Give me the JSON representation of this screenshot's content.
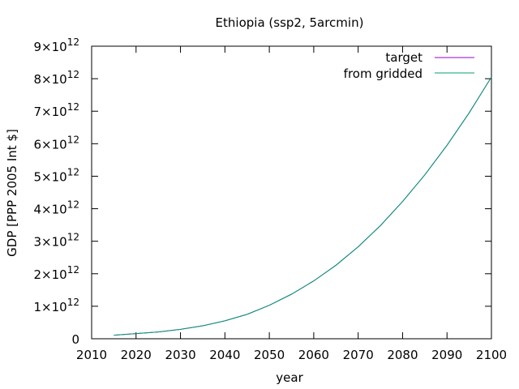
{
  "chart_data": {
    "type": "line",
    "title": "Ethiopia (ssp2, 5arcmin)",
    "xlabel": "year",
    "ylabel": "GDP [PPP 2005 Int $]",
    "xlim": [
      2010,
      2100
    ],
    "ylim": [
      0,
      9000000000000.0
    ],
    "xticks": [
      2010,
      2020,
      2030,
      2040,
      2050,
      2060,
      2070,
      2080,
      2090,
      2100
    ],
    "yticks": [
      {
        "value": 0,
        "mantissa": "0",
        "exp": ""
      },
      {
        "value": 1000000000000.0,
        "mantissa": "1×10",
        "exp": "12"
      },
      {
        "value": 2000000000000.0,
        "mantissa": "2×10",
        "exp": "12"
      },
      {
        "value": 3000000000000.0,
        "mantissa": "3×10",
        "exp": "12"
      },
      {
        "value": 4000000000000.0,
        "mantissa": "4×10",
        "exp": "12"
      },
      {
        "value": 5000000000000.0,
        "mantissa": "5×10",
        "exp": "12"
      },
      {
        "value": 6000000000000.0,
        "mantissa": "6×10",
        "exp": "12"
      },
      {
        "value": 7000000000000.0,
        "mantissa": "7×10",
        "exp": "12"
      },
      {
        "value": 8000000000000.0,
        "mantissa": "8×10",
        "exp": "12"
      },
      {
        "value": 9000000000000.0,
        "mantissa": "9×10",
        "exp": "12"
      }
    ],
    "grid": false,
    "legend_position": "top-right",
    "x": [
      2015,
      2020,
      2025,
      2030,
      2035,
      2040,
      2045,
      2050,
      2055,
      2060,
      2065,
      2070,
      2075,
      2080,
      2085,
      2090,
      2095,
      2100
    ],
    "series": [
      {
        "name": "target",
        "color": "#9400d3",
        "values": [
          110000000000.0,
          160000000000.0,
          210000000000.0,
          290000000000.0,
          400000000000.0,
          550000000000.0,
          750000000000.0,
          1030000000000.0,
          1370000000000.0,
          1780000000000.0,
          2260000000000.0,
          2830000000000.0,
          3480000000000.0,
          4220000000000.0,
          5040000000000.0,
          5950000000000.0,
          6950000000000.0,
          8050000000000.0
        ]
      },
      {
        "name": "from gridded",
        "color": "#009e73",
        "values": [
          110000000000.0,
          160000000000.0,
          210000000000.0,
          290000000000.0,
          400000000000.0,
          550000000000.0,
          750000000000.0,
          1030000000000.0,
          1370000000000.0,
          1780000000000.0,
          2260000000000.0,
          2830000000000.0,
          3480000000000.0,
          4220000000000.0,
          5040000000000.0,
          5950000000000.0,
          6950000000000.0,
          8050000000000.0
        ]
      }
    ]
  }
}
